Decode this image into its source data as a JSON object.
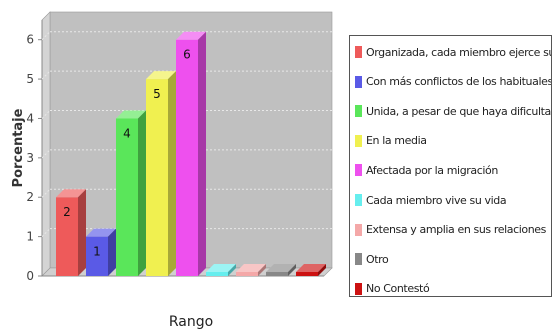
{
  "chart_data": {
    "type": "bar",
    "title": "",
    "xlabel": "Rango",
    "ylabel": "Porcentaje",
    "ylim": [
      0,
      6.5
    ],
    "yticks": [
      "0",
      "1",
      "2",
      "3",
      "4",
      "5",
      "6"
    ],
    "grid": true,
    "legend_position": "right",
    "categories": [
      "Organizada, cada miembro ejerce su función",
      "Con más conflictos de los habituales",
      "Unida, a pesar de que haya dificultades",
      "En la media",
      "Afectada por la migración",
      "Cada miembro vive su vida",
      "Extensa y amplia en sus relaciones",
      "Otro",
      "No Contestó"
    ],
    "values": [
      2,
      1,
      4,
      5,
      6,
      0,
      0,
      0,
      0
    ],
    "data_labels": [
      "2",
      "1",
      "4",
      "5",
      "6",
      "",
      "",
      "",
      ""
    ],
    "colors": [
      "#ee5a5a",
      "#5a5ae6",
      "#5ae65a",
      "#f0f050",
      "#ee50ee",
      "#66eeee",
      "#f4a8a8",
      "#888888",
      "#cc1111"
    ]
  }
}
